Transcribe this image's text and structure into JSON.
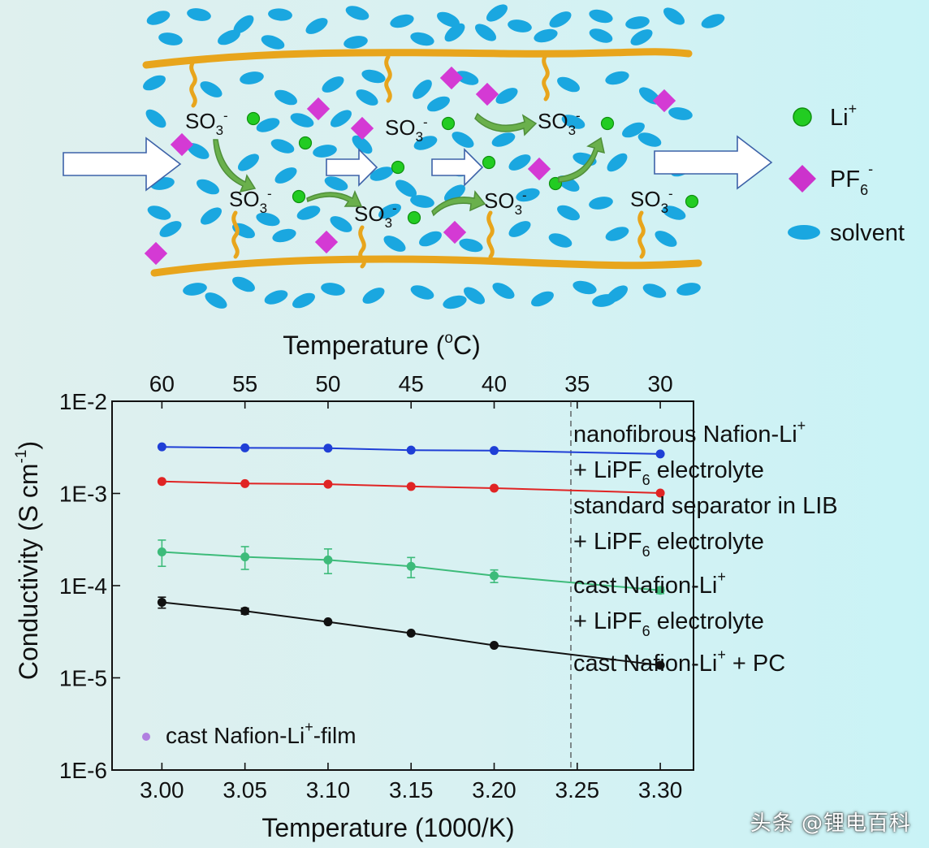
{
  "schematic": {
    "so3_label": "SO",
    "so3_sub": "3",
    "so3_sup": "-",
    "legend": [
      {
        "key": "li",
        "text": "Li",
        "sup": "+",
        "sub": "",
        "color": "#22cc22"
      },
      {
        "key": "pf6",
        "text": "PF",
        "sup": "-",
        "sub": "6",
        "color": "#cc33cc"
      },
      {
        "key": "solvent",
        "text": "solvent",
        "sup": "",
        "sub": "",
        "color": "#1aa7e0"
      }
    ],
    "colors": {
      "fiber": "#e8a51c",
      "solvent": "#1aa7e0",
      "li": "#22cc22",
      "pf6": "#d43ad4",
      "arrow": "#6ab04c"
    }
  },
  "chart_data": {
    "type": "scatter",
    "ylabel": "Conductivity (S cm",
    "ylabel_sup": "-1",
    "ylabel_close": ")",
    "xlabel": "Temperature (1000/K)",
    "top_axis_title": "Temperature (",
    "top_axis_title_sup": "o",
    "top_axis_title_close": "C)",
    "xlim": [
      2.97,
      3.32
    ],
    "ylim_log10": [
      -6,
      -2
    ],
    "x_ticks": [
      3.0,
      3.05,
      3.1,
      3.15,
      3.2,
      3.25,
      3.3
    ],
    "x_tick_labels": [
      "3.00",
      "3.05",
      "3.10",
      "3.15",
      "3.20",
      "3.25",
      "3.30"
    ],
    "top_ticks": [
      3.0,
      3.05,
      3.1,
      3.15,
      3.2,
      3.25,
      3.3
    ],
    "top_tick_labels": [
      "60",
      "55",
      "50",
      "45",
      "40",
      "35",
      "30"
    ],
    "y_ticks_log10": [
      -2,
      -3,
      -4,
      -5,
      -6
    ],
    "y_tick_labels": [
      "1E-2",
      "1E-3",
      "1E-4",
      "1E-5",
      "1E-6"
    ],
    "series": [
      {
        "name": "nanofibrous Nafion-Li+ + LiPF6 electrolyte",
        "color": "#1f3fd6",
        "x": [
          3.0,
          3.05,
          3.1,
          3.15,
          3.2,
          3.3
        ],
        "y": [
          0.0032,
          0.00312,
          0.0031,
          0.00295,
          0.00292,
          0.00268
        ],
        "err_lo": [
          0,
          0,
          0,
          0,
          0,
          0
        ],
        "err_hi": [
          0,
          0,
          0,
          0,
          0,
          0
        ]
      },
      {
        "name": "standard separator in LIB + LiPF6 electrolyte",
        "color": "#e02424",
        "x": [
          3.0,
          3.05,
          3.1,
          3.15,
          3.2,
          3.3
        ],
        "y": [
          0.00135,
          0.00128,
          0.00126,
          0.00119,
          0.00114,
          0.00101
        ],
        "err_lo": [
          0,
          0,
          0,
          0,
          0,
          0
        ],
        "err_hi": [
          0,
          0,
          0,
          0,
          0,
          0
        ]
      },
      {
        "name": "cast Nafion-Li+ + LiPF6 electrolyte",
        "color": "#3dbb7a",
        "x": [
          3.0,
          3.05,
          3.1,
          3.15,
          3.2,
          3.3
        ],
        "y": [
          0.000232,
          0.000205,
          0.00019,
          0.000162,
          0.000128,
          8.9e-05
        ],
        "err_lo": [
          7e-05,
          5.5e-05,
          5.5e-05,
          4e-05,
          2e-05,
          7e-06
        ],
        "err_hi": [
          8e-05,
          6e-05,
          6e-05,
          4e-05,
          2e-05,
          7e-06
        ]
      },
      {
        "name": "cast Nafion-Li+ + PC",
        "color": "#111111",
        "x": [
          3.0,
          3.05,
          3.1,
          3.15,
          3.2,
          3.3
        ],
        "y": [
          6.6e-05,
          5.3e-05,
          4.05e-05,
          3.05e-05,
          2.25e-05,
          1.37e-05
        ],
        "err_lo": [
          9e-06,
          4e-06,
          0,
          0,
          0,
          0
        ],
        "err_hi": [
          9e-06,
          4e-06,
          0,
          0,
          0,
          0
        ]
      }
    ],
    "film_marker": {
      "text": "cast Nafion-Li",
      "sup": "+",
      "tail": "-film",
      "color": "#b07fe0"
    },
    "legend_lines": [
      {
        "pre": "nanofibrous Nafion-Li",
        "sup": "+",
        "post": "",
        "sub": ""
      },
      {
        "pre": "+ LiPF",
        "sup": "",
        "sub": "6",
        "post": " electrolyte"
      },
      {
        "pre": "standard separator in LIB",
        "sup": "",
        "sub": "",
        "post": ""
      },
      {
        "pre": "+ LiPF",
        "sup": "",
        "sub": "6",
        "post": " electrolyte"
      },
      {
        "pre": "cast Nafion-Li",
        "sup": "+",
        "sub": "",
        "post": ""
      },
      {
        "pre": "+ LiPF",
        "sup": "",
        "sub": "6",
        "post": " electrolyte"
      },
      {
        "pre": "cast Nafion-Li",
        "sup": "+",
        "sub": "",
        "post": " + PC"
      }
    ]
  },
  "watermark": "头条 @锂电百科"
}
